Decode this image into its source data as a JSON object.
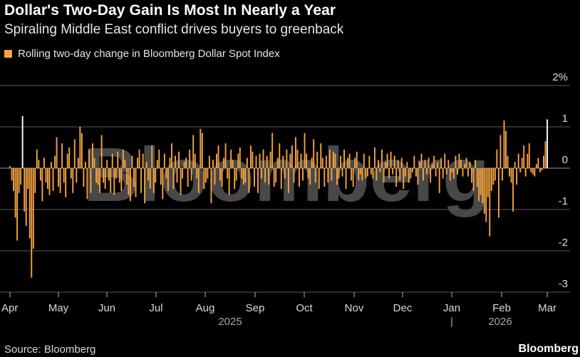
{
  "header": {
    "title": "Dollar's Two-Day Gain Is Most In Nearly a Year",
    "subtitle": "Spiraling Middle East conflict drives buyers to greenback"
  },
  "footer": {
    "source": "Source: Bloomberg",
    "brand": "Bloomberg"
  },
  "watermark": "Bloomberg",
  "colors": {
    "bar": "#f5a441",
    "highlight": "#ffffff",
    "grid": "#5a5a5a",
    "background": "#000000"
  },
  "chart_data": {
    "type": "bar",
    "title": "Dollar's Two-Day Gain Is Most In Nearly a Year",
    "legend": [
      "Rolling two-day change in Bloomberg Dollar Spot Index"
    ],
    "legend_position": "top-left",
    "ylabel": "%",
    "ylim": [
      -3,
      2
    ],
    "yticks": [
      2,
      1,
      0,
      -1,
      -2,
      -3
    ],
    "ytick_labels": [
      "2%",
      "1",
      "0",
      "-1",
      "-2",
      "-3"
    ],
    "months": [
      "Apr",
      "May",
      "Jun",
      "Jul",
      "Aug",
      "Sep",
      "Oct",
      "Nov",
      "Dec",
      "Jan",
      "Feb",
      "Mar"
    ],
    "years": [
      "2025",
      "2026"
    ],
    "year_separator": "|",
    "highlights": [
      {
        "date": "2025-04-08",
        "value": 1.26
      },
      {
        "date": "2026-03-03",
        "value": 1.18
      }
    ],
    "series": [
      {
        "name": "Rolling two-day change in Bloomberg Dollar Spot Index",
        "values": [
          0.05,
          -0.3,
          -0.55,
          -1.2,
          -1.75,
          -0.6,
          -0.4,
          1.26,
          -1.05,
          -1.4,
          -0.5,
          -1.7,
          -2.65,
          -1.95,
          -0.6,
          0.45,
          0.2,
          -0.3,
          -0.8,
          0.25,
          -0.35,
          -0.5,
          -0.65,
          0.15,
          -0.55,
          0.3,
          0.75,
          -0.45,
          -0.6,
          0.6,
          -0.35,
          -0.7,
          0.35,
          0.5,
          -0.25,
          -0.6,
          0.7,
          -0.35,
          0.25,
          1.0,
          0.85,
          -0.45,
          0.15,
          -0.75,
          0.45,
          -0.6,
          0.6,
          0.25,
          -0.35,
          -0.4,
          -0.6,
          0.8,
          -0.35,
          -0.5,
          0.2,
          -0.3,
          -0.6,
          0.35,
          -0.65,
          -0.25,
          0.4,
          -0.35,
          -0.55,
          0.45,
          0.2,
          -0.4,
          -0.65,
          -0.8,
          0.3,
          -0.45,
          -0.7,
          0.25,
          0.45,
          -0.6,
          0.35,
          -0.85,
          0.15,
          -0.3,
          -0.5,
          0.55,
          -0.6,
          -0.35,
          0.2,
          0.45,
          -0.4,
          -0.75,
          0.35,
          -0.25,
          -0.55,
          0.25,
          0.6,
          -0.5,
          0.3,
          -0.35,
          0.4,
          -0.65,
          -0.25,
          0.15,
          0.25,
          -0.45,
          0.45,
          -0.3,
          0.8,
          0.35,
          -0.25,
          -0.6,
          0.95,
          0.85,
          -0.5,
          -0.35,
          -0.25,
          0.3,
          -0.85,
          0.2,
          -0.4,
          0.35,
          0.55,
          -0.3,
          -0.45,
          0.25,
          0.6,
          -0.25,
          -0.65,
          0.45,
          0.2,
          -0.5,
          -0.3,
          0.35,
          0.5,
          -0.25,
          -0.4,
          -0.35,
          0.25,
          -0.6,
          0.55,
          0.4,
          -0.45,
          0.3,
          -0.6,
          0.35,
          -0.25,
          0.45,
          -0.35,
          0.3,
          -0.4,
          0.4,
          0.85,
          -0.45,
          -0.35,
          0.25,
          0.6,
          -0.5,
          0.3,
          -0.25,
          0.45,
          -0.6,
          0.35,
          0.55,
          -0.35,
          0.75,
          0.45,
          -0.45,
          0.35,
          -0.3,
          0.85,
          0.35,
          -0.25,
          -0.4,
          0.25,
          0.7,
          -0.35,
          0.4,
          -0.5,
          0.6,
          0.25,
          -0.45,
          0.3,
          -0.35,
          0.45,
          -0.3,
          0.4,
          0.35,
          -0.4,
          -0.25,
          0.3,
          -0.2,
          0.45,
          -0.5,
          0.25,
          0.35,
          -0.3,
          -0.45,
          0.25,
          0.4,
          -0.3,
          -0.15,
          -0.3,
          0.35,
          -0.25,
          -0.2,
          0.3,
          -0.15,
          -0.25,
          0.5,
          -0.3,
          0.2,
          -0.1,
          0.45,
          -0.35,
          0.15,
          0.35,
          -0.25,
          0.4,
          -0.15,
          0.3,
          -0.45,
          0.2,
          -0.3,
          0.25,
          -0.5,
          -0.2,
          0.15,
          -0.35,
          -0.25,
          -0.1,
          0.3,
          -0.2,
          -0.4,
          0.15,
          0.35,
          -0.3,
          0.2,
          -0.15,
          0.25,
          -0.35,
          0.1,
          0.3,
          -0.2,
          0.15,
          -0.6,
          0.25,
          -0.25,
          0.35,
          -0.15,
          0.2,
          -0.3,
          -0.1,
          -0.25,
          0.3,
          -0.15,
          0.35,
          0.2,
          -0.2,
          0.1,
          0.25,
          -0.2,
          0.15,
          -0.35,
          -0.55,
          0.2,
          -0.45,
          -0.8,
          -0.65,
          -0.85,
          -1.1,
          -1.3,
          -0.7,
          -1.65,
          -0.55,
          -0.4,
          -0.3,
          0.45,
          -1.2,
          0.8,
          -0.3,
          1.15,
          0.9,
          0.3,
          -0.2,
          -0.35,
          -1.05,
          0.15,
          -0.4,
          0.35,
          -0.1,
          0.25,
          0.55,
          -0.2,
          0.35,
          0.6,
          -0.1,
          -0.15,
          -0.2,
          0.1,
          0.25,
          -0.1,
          -0.05,
          0.3,
          0.65,
          1.18
        ]
      }
    ]
  }
}
